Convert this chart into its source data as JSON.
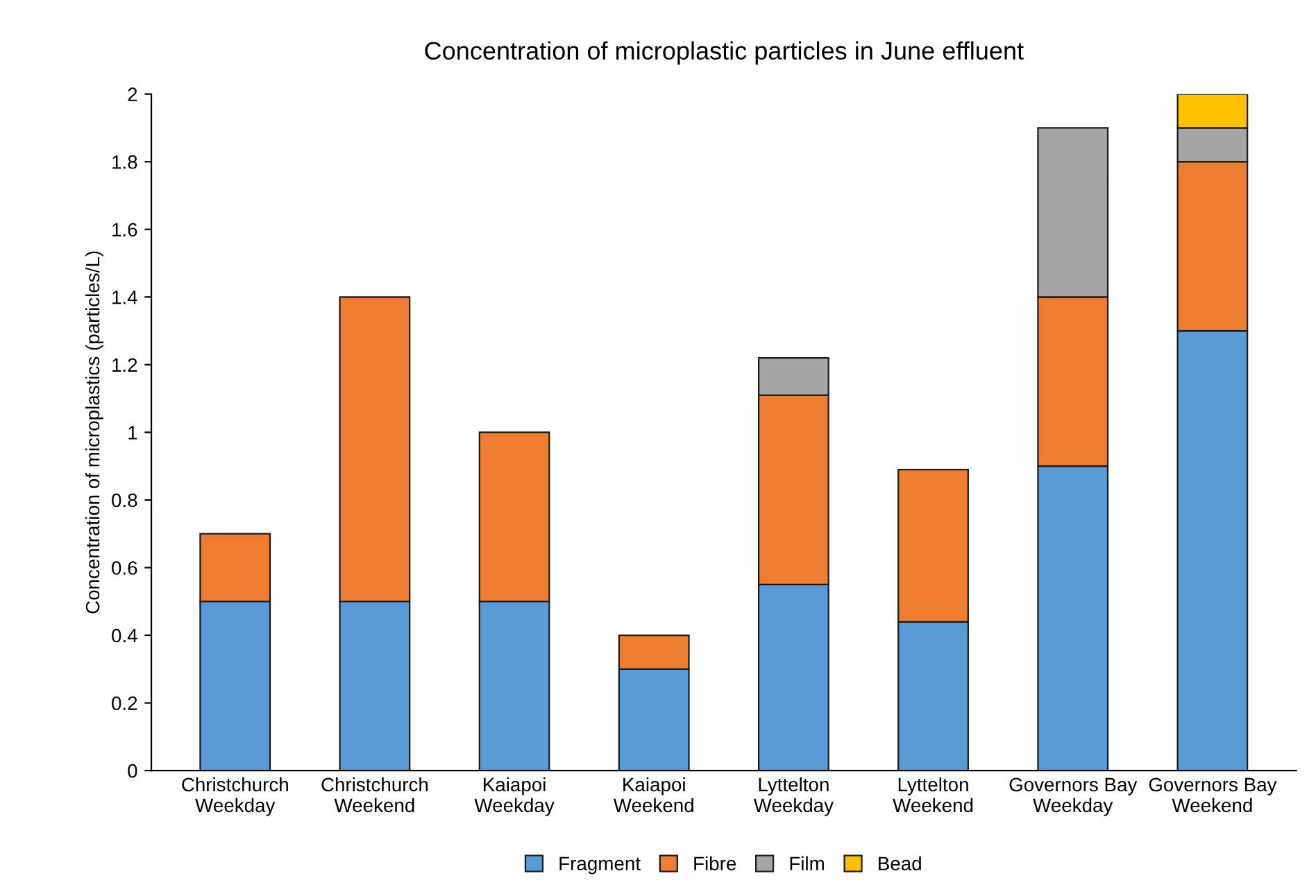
{
  "chart_data": {
    "type": "bar",
    "stacked": true,
    "title": "Concentration of microplastic particles in June effluent",
    "ylabel": "Concentration of microplastics (particles/L)",
    "categories": [
      "Christchurch\nWeekday",
      "Christchurch\nWeekend",
      "Kaiapoi\nWeekday",
      "Kaiapoi\nWeekend",
      "Lyttelton\nWeekday",
      "Lyttelton\nWeekend",
      "Governors Bay\nWeekday",
      "Governors Bay\nWeekend"
    ],
    "series": [
      {
        "name": "Fragment",
        "color": "#5b9bd5",
        "values": [
          0.5,
          0.5,
          0.5,
          0.3,
          0.55,
          0.44,
          0.9,
          1.3
        ]
      },
      {
        "name": "Fibre",
        "color": "#ed7d31",
        "values": [
          0.2,
          0.9,
          0.5,
          0.1,
          0.56,
          0.45,
          0.5,
          0.5
        ]
      },
      {
        "name": "Film",
        "color": "#a5a5a5",
        "values": [
          null,
          null,
          null,
          null,
          0.11,
          null,
          0.5,
          0.1
        ]
      },
      {
        "name": "Bead",
        "color": "#ffc000",
        "values": [
          null,
          null,
          null,
          null,
          null,
          null,
          null,
          0.1
        ]
      }
    ],
    "ylim": [
      0,
      2
    ],
    "yticks": [
      0,
      0.2,
      0.4,
      0.6,
      0.8,
      1,
      1.2,
      1.4,
      1.6,
      1.8,
      2
    ],
    "legend": "bottom"
  }
}
